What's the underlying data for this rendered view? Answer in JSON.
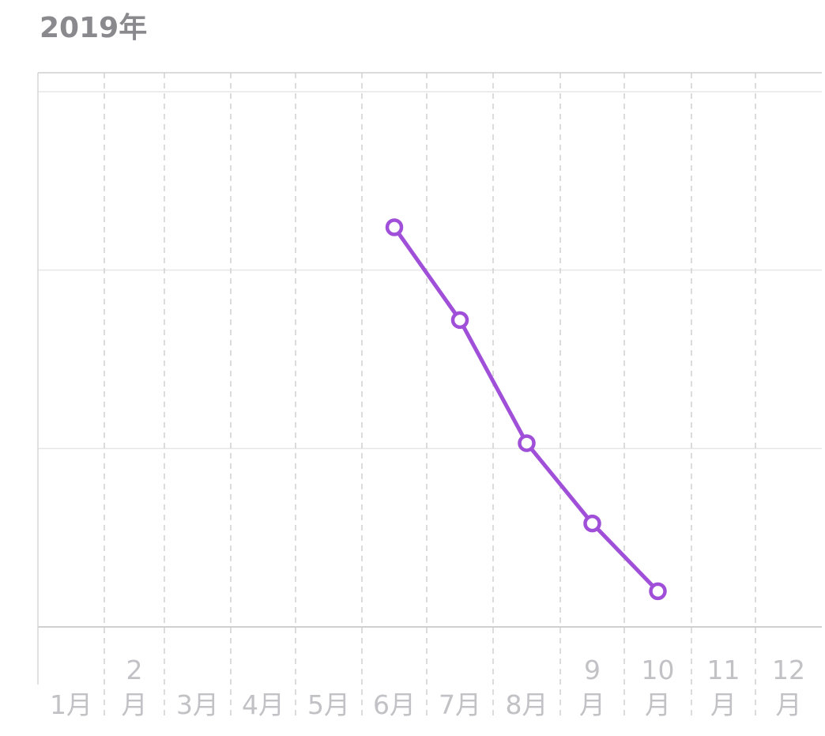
{
  "title": "2019年",
  "colors": {
    "line": "#a04fd8",
    "grid": "#e6e6e6",
    "dashed_grid": "#d0d0d0",
    "tick_text": "#c2c2c6",
    "title_text": "#8a8a8e"
  },
  "chart_data": {
    "type": "line",
    "title": "2019年",
    "xlabel": "",
    "ylabel": "",
    "categories": [
      "1月",
      "2月",
      "3月",
      "4月",
      "5月",
      "6月",
      "7月",
      "8月",
      "9月",
      "10月",
      "11月",
      "12月"
    ],
    "tick_label_lines": [
      [
        "1月"
      ],
      [
        "2",
        "月"
      ],
      [
        "3月"
      ],
      [
        "4月"
      ],
      [
        "5月"
      ],
      [
        "6月"
      ],
      [
        "7月"
      ],
      [
        "8月"
      ],
      [
        "9",
        "月"
      ],
      [
        "10",
        "月"
      ],
      [
        "11",
        "月"
      ],
      [
        "12",
        "月"
      ]
    ],
    "ylim": [
      0,
      3
    ],
    "y_grid_values": [
      0,
      1,
      2,
      3
    ],
    "y_tick_labels_shown": false,
    "grid": true,
    "legend": "none",
    "series": [
      {
        "x": [
          "6月",
          "7月",
          "8月",
          "9月",
          "10月"
        ],
        "values": [
          2.24,
          1.72,
          1.03,
          0.58,
          0.2
        ]
      }
    ]
  }
}
